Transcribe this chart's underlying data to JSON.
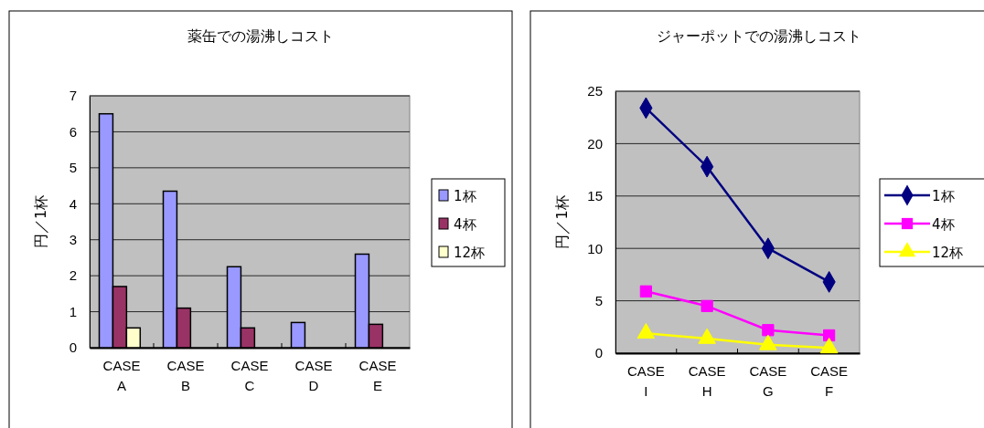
{
  "chart_data": [
    {
      "type": "bar",
      "title": "薬缶での湯沸しコスト",
      "ylabel": "円／1杯",
      "categories": [
        "CASE A",
        "CASE B",
        "CASE C",
        "CASE D",
        "CASE E"
      ],
      "ylim": [
        0,
        7
      ],
      "yticks": [
        0,
        1,
        2,
        3,
        4,
        5,
        6,
        7
      ],
      "grid": "y",
      "legend": "right",
      "series": [
        {
          "name": "1杯",
          "color": "#9999ff",
          "values": [
            6.5,
            4.35,
            2.25,
            0.7,
            2.6
          ]
        },
        {
          "name": "4杯",
          "color": "#993366",
          "values": [
            1.7,
            1.1,
            0.55,
            null,
            0.65
          ]
        },
        {
          "name": "12杯",
          "color": "#ffffcc",
          "values": [
            0.55,
            null,
            null,
            null,
            null
          ]
        }
      ]
    },
    {
      "type": "line",
      "title": "ジャーポットでの湯沸しコスト",
      "ylabel": "円／1杯",
      "categories": [
        "CASE I",
        "CASE H",
        "CASE G",
        "CASE F"
      ],
      "ylim": [
        0,
        25
      ],
      "yticks": [
        0,
        5,
        10,
        15,
        20,
        25
      ],
      "grid": "y",
      "legend": "right",
      "series": [
        {
          "name": "1杯",
          "color": "#000080",
          "marker": "diamond",
          "values": [
            23.4,
            17.8,
            10.0,
            6.8
          ]
        },
        {
          "name": "4杯",
          "color": "#ff00ff",
          "marker": "square",
          "values": [
            5.9,
            4.5,
            2.2,
            1.7
          ]
        },
        {
          "name": "12杯",
          "color": "#ffff00",
          "marker": "triangle",
          "values": [
            1.9,
            1.4,
            0.8,
            0.5
          ]
        }
      ]
    }
  ]
}
